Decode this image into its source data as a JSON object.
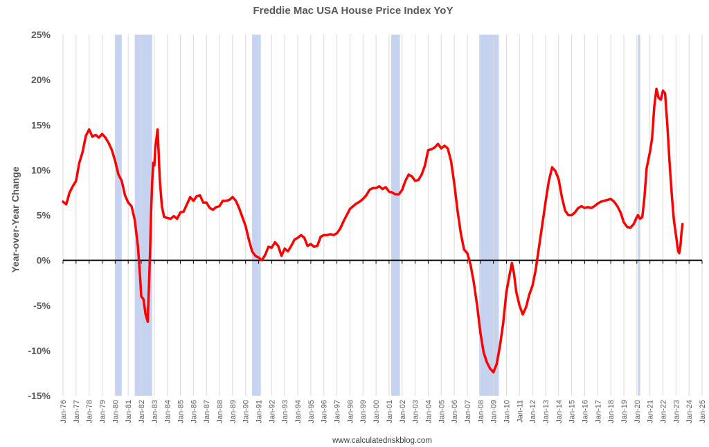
{
  "chart_data": {
    "type": "line",
    "title": "Freddie Mac USA House Price Index YoY",
    "ylabel": "Year-over-Year Change",
    "source": "www.calculatedriskblog.com",
    "x_tick_labels": [
      "Jan-76",
      "Jan-77",
      "Jan-78",
      "Jan-79",
      "Jan-80",
      "Jan-81",
      "Jan-82",
      "Jan-83",
      "Jan-84",
      "Jan-85",
      "Jan-86",
      "Jan-87",
      "Jan-88",
      "Jan-89",
      "Jan-90",
      "Jan-91",
      "Jan-92",
      "Jan-93",
      "Jan-94",
      "Jan-95",
      "Jan-96",
      "Jan-97",
      "Jan-98",
      "Jan-99",
      "Jan-00",
      "Jan-01",
      "Jan-02",
      "Jan-03",
      "Jan-04",
      "Jan-05",
      "Jan-06",
      "Jan-07",
      "Jan-08",
      "Jan-09",
      "Jan-10",
      "Jan-11",
      "Jan-12",
      "Jan-13",
      "Jan-14",
      "Jan-15",
      "Jan-16",
      "Jan-17",
      "Jan-18",
      "Jan-19",
      "Jan-20",
      "Jan-21",
      "Jan-22",
      "Jan-23",
      "Jan-24",
      "Jan-25"
    ],
    "y_ticks": [
      -15,
      -10,
      -5,
      0,
      5,
      10,
      15,
      20,
      25
    ],
    "y_tick_labels": [
      "-15%",
      "-10%",
      "-5%",
      "0%",
      "5%",
      "10%",
      "15%",
      "20%",
      "25%"
    ],
    "ylim": [
      -15,
      25
    ],
    "xlim": [
      "1976-01",
      "2025-01"
    ],
    "grid": "vertical",
    "colors": {
      "line": "#ff0000",
      "recession": "#c5d3f0",
      "zero_line": "#000000",
      "grid": "#d9d9d9"
    },
    "recessions": [
      {
        "start": "1980-01",
        "end": "1980-07"
      },
      {
        "start": "1981-07",
        "end": "1982-11"
      },
      {
        "start": "1990-07",
        "end": "1991-03"
      },
      {
        "start": "2001-03",
        "end": "2001-11"
      },
      {
        "start": "2007-12",
        "end": "2009-06"
      },
      {
        "start": "2020-02",
        "end": "2020-04"
      }
    ],
    "series": [
      {
        "values": [
          [
            "1976-01",
            6.5
          ],
          [
            "1976-04",
            6.2
          ],
          [
            "1976-07",
            7.5
          ],
          [
            "1976-10",
            8.2
          ],
          [
            "1977-01",
            8.8
          ],
          [
            "1977-04",
            10.8
          ],
          [
            "1977-07",
            12.0
          ],
          [
            "1977-10",
            13.8
          ],
          [
            "1978-01",
            14.5
          ],
          [
            "1978-04",
            13.7
          ],
          [
            "1978-07",
            13.9
          ],
          [
            "1978-10",
            13.6
          ],
          [
            "1979-01",
            14.0
          ],
          [
            "1979-04",
            13.6
          ],
          [
            "1979-07",
            13.0
          ],
          [
            "1979-10",
            12.2
          ],
          [
            "1980-01",
            11.0
          ],
          [
            "1980-04",
            9.5
          ],
          [
            "1980-07",
            8.8
          ],
          [
            "1980-10",
            7.2
          ],
          [
            "1981-01",
            6.4
          ],
          [
            "1981-04",
            6.0
          ],
          [
            "1981-07",
            4.5
          ],
          [
            "1981-10",
            1.5
          ],
          [
            "1981-12",
            -2.0
          ],
          [
            "1982-01",
            -4.0
          ],
          [
            "1982-03",
            -4.3
          ],
          [
            "1982-05",
            -6.0
          ],
          [
            "1982-07",
            -6.8
          ],
          [
            "1982-09",
            0.5
          ],
          [
            "1982-10",
            5.0
          ],
          [
            "1982-11",
            8.5
          ],
          [
            "1982-12",
            10.8
          ],
          [
            "1983-01",
            10.5
          ],
          [
            "1983-02",
            12.5
          ],
          [
            "1983-03",
            13.5
          ],
          [
            "1983-04",
            14.5
          ],
          [
            "1983-05",
            12.0
          ],
          [
            "1983-06",
            9.0
          ],
          [
            "1983-08",
            6.0
          ],
          [
            "1983-10",
            4.8
          ],
          [
            "1984-01",
            4.7
          ],
          [
            "1984-04",
            4.6
          ],
          [
            "1984-07",
            4.9
          ],
          [
            "1984-10",
            4.6
          ],
          [
            "1985-01",
            5.3
          ],
          [
            "1985-04",
            5.4
          ],
          [
            "1985-07",
            6.2
          ],
          [
            "1985-10",
            7.0
          ],
          [
            "1986-01",
            6.6
          ],
          [
            "1986-04",
            7.1
          ],
          [
            "1986-07",
            7.2
          ],
          [
            "1986-10",
            6.4
          ],
          [
            "1987-01",
            6.4
          ],
          [
            "1987-04",
            5.8
          ],
          [
            "1987-07",
            5.6
          ],
          [
            "1987-10",
            5.9
          ],
          [
            "1988-01",
            6.0
          ],
          [
            "1988-04",
            6.6
          ],
          [
            "1988-07",
            6.6
          ],
          [
            "1988-10",
            6.7
          ],
          [
            "1989-01",
            7.0
          ],
          [
            "1989-04",
            6.6
          ],
          [
            "1989-07",
            5.8
          ],
          [
            "1989-10",
            4.8
          ],
          [
            "1990-01",
            3.8
          ],
          [
            "1990-04",
            2.3
          ],
          [
            "1990-07",
            1.0
          ],
          [
            "1990-10",
            0.5
          ],
          [
            "1991-01",
            0.3
          ],
          [
            "1991-04",
            0.0
          ],
          [
            "1991-07",
            0.6
          ],
          [
            "1991-10",
            1.5
          ],
          [
            "1992-01",
            1.4
          ],
          [
            "1992-04",
            2.0
          ],
          [
            "1992-07",
            1.6
          ],
          [
            "1992-10",
            0.5
          ],
          [
            "1993-01",
            1.3
          ],
          [
            "1993-04",
            1.0
          ],
          [
            "1993-07",
            1.6
          ],
          [
            "1993-10",
            2.3
          ],
          [
            "1994-01",
            2.5
          ],
          [
            "1994-04",
            2.8
          ],
          [
            "1994-07",
            2.5
          ],
          [
            "1994-10",
            1.6
          ],
          [
            "1995-01",
            1.8
          ],
          [
            "1995-04",
            1.5
          ],
          [
            "1995-07",
            1.6
          ],
          [
            "1995-10",
            2.6
          ],
          [
            "1996-01",
            2.8
          ],
          [
            "1996-04",
            2.8
          ],
          [
            "1996-07",
            2.9
          ],
          [
            "1996-10",
            2.8
          ],
          [
            "1997-01",
            3.0
          ],
          [
            "1997-04",
            3.5
          ],
          [
            "1997-07",
            4.3
          ],
          [
            "1997-10",
            5.0
          ],
          [
            "1998-01",
            5.7
          ],
          [
            "1998-04",
            6.0
          ],
          [
            "1998-07",
            6.3
          ],
          [
            "1998-10",
            6.5
          ],
          [
            "1999-01",
            6.8
          ],
          [
            "1999-04",
            7.2
          ],
          [
            "1999-07",
            7.8
          ],
          [
            "1999-10",
            8.0
          ],
          [
            "2000-01",
            8.0
          ],
          [
            "2000-04",
            8.2
          ],
          [
            "2000-07",
            7.9
          ],
          [
            "2000-10",
            8.1
          ],
          [
            "2001-01",
            7.6
          ],
          [
            "2001-04",
            7.5
          ],
          [
            "2001-07",
            7.3
          ],
          [
            "2001-10",
            7.3
          ],
          [
            "2002-01",
            7.8
          ],
          [
            "2002-04",
            8.8
          ],
          [
            "2002-07",
            9.5
          ],
          [
            "2002-10",
            9.3
          ],
          [
            "2003-01",
            8.8
          ],
          [
            "2003-04",
            8.9
          ],
          [
            "2003-07",
            9.5
          ],
          [
            "2003-10",
            10.5
          ],
          [
            "2004-01",
            12.2
          ],
          [
            "2004-04",
            12.3
          ],
          [
            "2004-07",
            12.5
          ],
          [
            "2004-10",
            12.9
          ],
          [
            "2005-01",
            12.4
          ],
          [
            "2005-04",
            12.7
          ],
          [
            "2005-07",
            12.4
          ],
          [
            "2005-10",
            11.0
          ],
          [
            "2006-01",
            8.5
          ],
          [
            "2006-04",
            5.5
          ],
          [
            "2006-07",
            3.0
          ],
          [
            "2006-10",
            1.2
          ],
          [
            "2007-01",
            0.8
          ],
          [
            "2007-04",
            -0.5
          ],
          [
            "2007-07",
            -2.5
          ],
          [
            "2007-10",
            -5.0
          ],
          [
            "2008-01",
            -8.0
          ],
          [
            "2008-04",
            -10.2
          ],
          [
            "2008-07",
            -11.3
          ],
          [
            "2008-10",
            -12.0
          ],
          [
            "2009-01",
            -12.4
          ],
          [
            "2009-04",
            -11.5
          ],
          [
            "2009-07",
            -9.5
          ],
          [
            "2009-10",
            -7.0
          ],
          [
            "2010-01",
            -3.5
          ],
          [
            "2010-04",
            -1.5
          ],
          [
            "2010-06",
            -0.3
          ],
          [
            "2010-08",
            -1.5
          ],
          [
            "2010-10",
            -3.5
          ],
          [
            "2011-01",
            -5.0
          ],
          [
            "2011-04",
            -6.0
          ],
          [
            "2011-07",
            -5.2
          ],
          [
            "2011-10",
            -3.8
          ],
          [
            "2012-01",
            -2.8
          ],
          [
            "2012-04",
            -1.0
          ],
          [
            "2012-07",
            1.5
          ],
          [
            "2012-10",
            4.0
          ],
          [
            "2013-01",
            6.5
          ],
          [
            "2013-04",
            8.8
          ],
          [
            "2013-07",
            10.3
          ],
          [
            "2013-10",
            9.9
          ],
          [
            "2014-01",
            9.0
          ],
          [
            "2014-04",
            7.0
          ],
          [
            "2014-07",
            5.5
          ],
          [
            "2014-10",
            5.0
          ],
          [
            "2015-01",
            5.0
          ],
          [
            "2015-04",
            5.3
          ],
          [
            "2015-07",
            5.8
          ],
          [
            "2015-10",
            6.0
          ],
          [
            "2016-01",
            5.8
          ],
          [
            "2016-04",
            5.9
          ],
          [
            "2016-07",
            5.8
          ],
          [
            "2016-10",
            6.0
          ],
          [
            "2017-01",
            6.3
          ],
          [
            "2017-04",
            6.5
          ],
          [
            "2017-07",
            6.6
          ],
          [
            "2017-10",
            6.7
          ],
          [
            "2018-01",
            6.8
          ],
          [
            "2018-04",
            6.5
          ],
          [
            "2018-07",
            6.0
          ],
          [
            "2018-10",
            5.3
          ],
          [
            "2019-01",
            4.2
          ],
          [
            "2019-04",
            3.7
          ],
          [
            "2019-07",
            3.6
          ],
          [
            "2019-10",
            4.0
          ],
          [
            "2020-01",
            4.8
          ],
          [
            "2020-02",
            5.0
          ],
          [
            "2020-04",
            4.6
          ],
          [
            "2020-06",
            4.8
          ],
          [
            "2020-08",
            7.0
          ],
          [
            "2020-10",
            10.2
          ],
          [
            "2021-01",
            12.0
          ],
          [
            "2021-03",
            13.5
          ],
          [
            "2021-05",
            17.0
          ],
          [
            "2021-07",
            19.0
          ],
          [
            "2021-09",
            18.0
          ],
          [
            "2021-11",
            17.8
          ],
          [
            "2022-01",
            18.8
          ],
          [
            "2022-03",
            18.5
          ],
          [
            "2022-05",
            15.0
          ],
          [
            "2022-07",
            11.0
          ],
          [
            "2022-09",
            7.5
          ],
          [
            "2022-11",
            4.5
          ],
          [
            "2023-01",
            2.8
          ],
          [
            "2023-03",
            1.0
          ],
          [
            "2023-04",
            0.8
          ],
          [
            "2023-05",
            1.5
          ],
          [
            "2023-06",
            3.0
          ],
          [
            "2023-07",
            4.0
          ]
        ]
      }
    ]
  }
}
